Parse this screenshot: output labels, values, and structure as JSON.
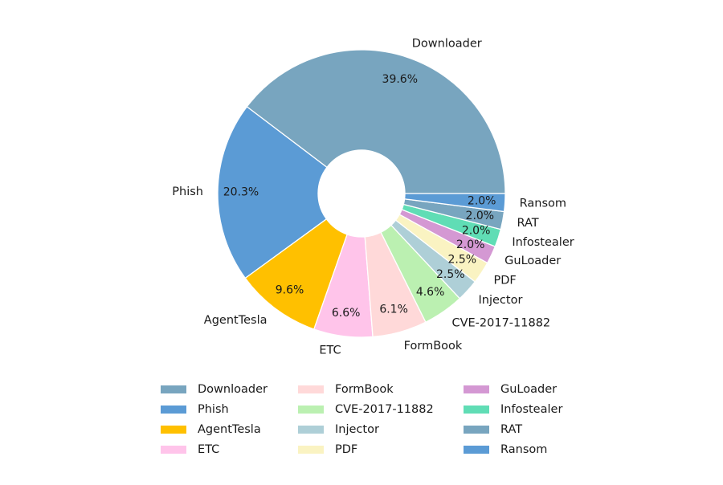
{
  "chart_data": {
    "type": "pie",
    "donut": true,
    "title": "",
    "categories": [
      "Downloader",
      "Phish",
      "AgentTesla",
      "ETC",
      "FormBook",
      "CVE-2017-11882",
      "Injector",
      "PDF",
      "GuLoader",
      "Infostealer",
      "RAT",
      "Ransom"
    ],
    "values": [
      39.6,
      20.3,
      9.6,
      6.6,
      6.1,
      4.6,
      2.5,
      2.5,
      2.0,
      2.0,
      2.0,
      2.0
    ],
    "value_labels": [
      "39.6%",
      "20.3%",
      "9.6%",
      "6.6%",
      "6.1%",
      "4.6%",
      "2.5%",
      "2.5%",
      "2.0%",
      "2.0%",
      "2.0%",
      "2.0%"
    ],
    "colors": [
      "#78A5BF",
      "#5B9BD5",
      "#FFC000",
      "#FFC4EA",
      "#FFD9D9",
      "#BBF0B1",
      "#AECFD7",
      "#FAF3C2",
      "#D498D3",
      "#60DDB5",
      "#78A5BF",
      "#5B9BD5"
    ],
    "slice_edge_color": "#ffffff",
    "start_angle_deg": 0,
    "direction": "counterclockwise",
    "legend": {
      "placement": "bottom",
      "columns": 3,
      "items": [
        "Downloader",
        "Phish",
        "AgentTesla",
        "ETC",
        "FormBook",
        "CVE-2017-11882",
        "Injector",
        "PDF",
        "GuLoader",
        "Infostealer",
        "RAT",
        "Ransom"
      ]
    }
  }
}
